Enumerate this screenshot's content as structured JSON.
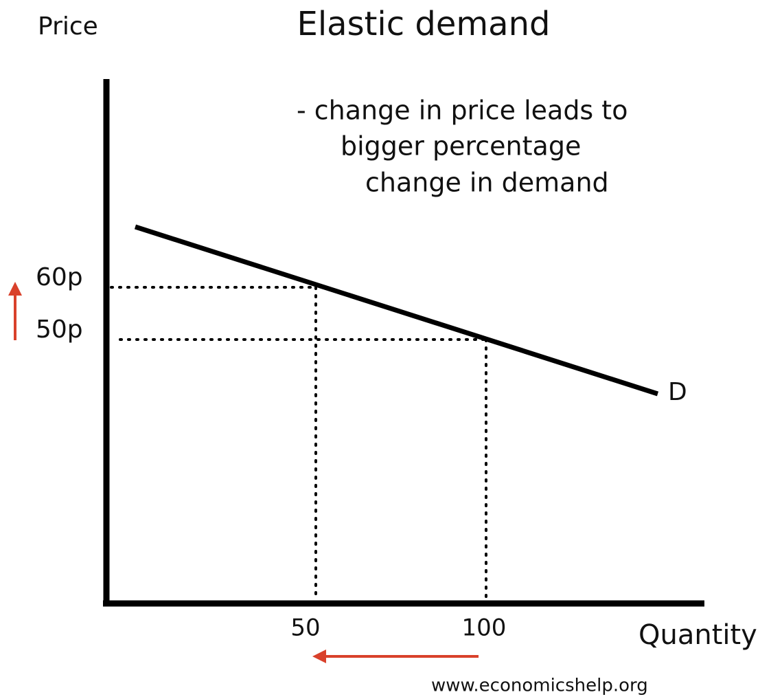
{
  "title": "Elastic demand",
  "y_axis_label": "Price",
  "x_axis_label": "Quantity",
  "annotation": [
    "- change in price leads to",
    "bigger percentage",
    "change in demand"
  ],
  "price_labels": [
    "60p",
    "50p"
  ],
  "quantity_labels": [
    "50",
    "100"
  ],
  "curve_label": "D",
  "source": "www.economicshelp.org"
}
